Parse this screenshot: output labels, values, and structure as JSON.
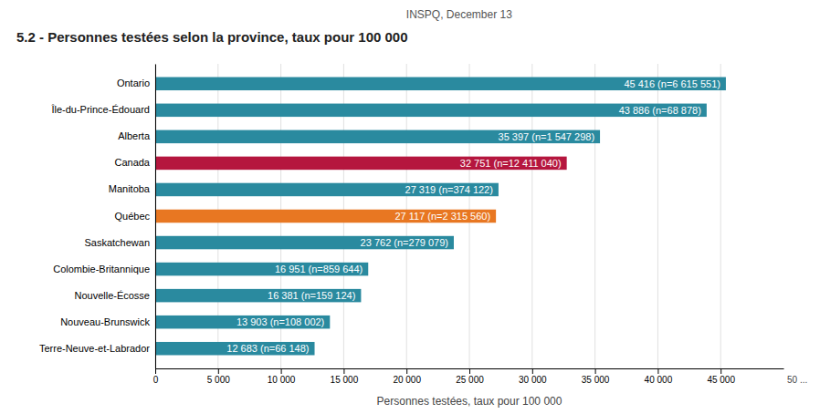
{
  "chart_data": {
    "type": "bar",
    "orientation": "horizontal",
    "title": "5.2 - Personnes testées selon la province, taux pour 100 000",
    "subtitle": "INSPQ, December 13",
    "xlabel": "Personnes testées, taux pour 100 000",
    "annotations": [
      "50 ..."
    ],
    "categories": [
      "Terre-Neuve-et-Labrador",
      "Nouveau-Brunswick",
      "Nouvelle-Écosse",
      "Colombie-Britannique",
      "Saskatchewan",
      "Québec",
      "Manitoba",
      "Canada",
      "Alberta",
      "Île-du-Prince-Édouard",
      "Ontario"
    ],
    "values": [
      12683,
      13903,
      16381,
      16951,
      23762,
      27117,
      27319,
      32751,
      35397,
      43886,
      45416
    ],
    "value_labels": [
      "12 683 (n=66 148)",
      "13 903 (n=108 002)",
      "16 381 (n=159 124)",
      "16 951 (n=859 644)",
      "23 762 (n=279 079)",
      "27 117 (n=2 315 560)",
      "27 319 (n=374 122)",
      "32 751 (n=12 411 040)",
      "35 397 (n=1 547 298)",
      "43 886 (n=68 878)",
      "45 416 (n=6 615 551)"
    ],
    "data_labels": true,
    "colors": [
      "#2a8a9f",
      "#2a8a9f",
      "#2a8a9f",
      "#2a8a9f",
      "#2a8a9f",
      "#e87722",
      "#2a8a9f",
      "#b5163e",
      "#2a8a9f",
      "#2a8a9f",
      "#2a8a9f"
    ],
    "xlim": [
      0,
      50000
    ],
    "xticks": [
      0,
      {
        "value": 5000,
        "label": "5 000"
      },
      {
        "value": 10000,
        "label": "10 000"
      },
      {
        "value": 15000,
        "label": "15 000"
      },
      {
        "value": 20000,
        "label": "20 000"
      },
      {
        "value": 25000,
        "label": "25 000"
      },
      {
        "value": 30000,
        "label": "30 000"
      },
      {
        "value": 35000,
        "label": "35 000"
      },
      {
        "value": 40000,
        "label": "40 000"
      },
      {
        "value": 45000,
        "label": "45 000"
      }
    ],
    "grid": true
  }
}
